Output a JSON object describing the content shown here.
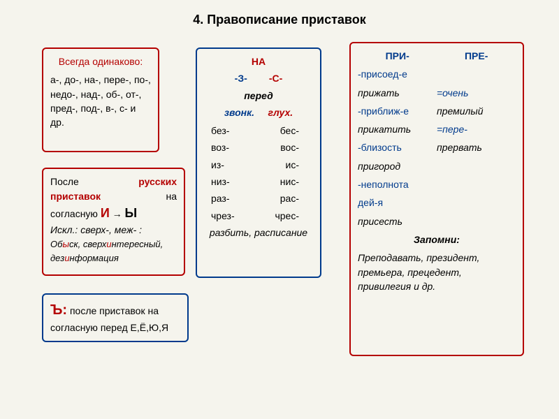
{
  "title": "4. Правописание приставок",
  "box1": {
    "head": "Всегда одинаково:",
    "body": "а-, до-, на-, пере-, по-, недо-, над-, об-, от-, пред-, под-, в-, с- и др."
  },
  "box2": {
    "na": "НА",
    "z": "-З-",
    "s": "-С-",
    "pered": "перед",
    "zv": "звонк.",
    "gl": "глух.",
    "pairs": [
      [
        "без-",
        "бес-"
      ],
      [
        "воз-",
        "вос-"
      ],
      [
        "из-",
        "ис-"
      ],
      [
        "низ-",
        "нис-"
      ],
      [
        "раз-",
        "рас-"
      ],
      [
        "чрез-",
        "чрес-"
      ]
    ],
    "foot": "разбить, расписание"
  },
  "box3": {
    "pri": "ПРИ-",
    "pre": "ПРЕ-",
    "rows": [
      {
        "l": "-присоед-е",
        "lcls": "blue",
        "r": ""
      },
      {
        "l": "прижать",
        "lcls": "ital",
        "r": "=очень",
        "rcls": "blue"
      },
      {
        "l": "-приближ-е",
        "lcls": "blue",
        "r": "премилый"
      },
      {
        "l": "прикатить",
        "lcls": "ital",
        "r": "=пере-",
        "rcls": "blue"
      },
      {
        "l": "-близость",
        "lcls": "blue",
        "r": "прервать"
      },
      {
        "l": "пригород",
        "lcls": "ital",
        "r": ""
      },
      {
        "l": "-неполнота",
        "lcls": "blue",
        "r": ""
      },
      {
        "l": "  дей-я",
        "lcls": "blue",
        "r": ""
      },
      {
        "l": "присесть",
        "lcls": "ital",
        "r": ""
      }
    ],
    "zap": "Запомни:",
    "zlist": "Преподавать, президент, премьера, прецедент, привилегия и др."
  },
  "box4": {
    "l1a": "После",
    "l1b": "русских",
    "l2a": "приставок",
    "l2b": "на",
    "l3a": "согласную ",
    "l3_i": "И",
    "l3_arrow": " → ",
    "l3_y": "Ы",
    "l4": "Искл.: сверх-, меж- :",
    "l5_pre": "Об",
    "l5_y": "ы",
    "l5_mid": "ск, сверх",
    "l5_i": "и",
    "l5_mid2": "нтересный, дез",
    "l5_i2": "и",
    "l5_end": "нформация"
  },
  "box5": {
    "b": "Ъ:",
    "text": " после приставок на согласную перед Е,Ё,Ю,Я"
  },
  "colors": {
    "bg": "#f5f4ed",
    "red": "#b40000",
    "blue": "#003a8c"
  }
}
